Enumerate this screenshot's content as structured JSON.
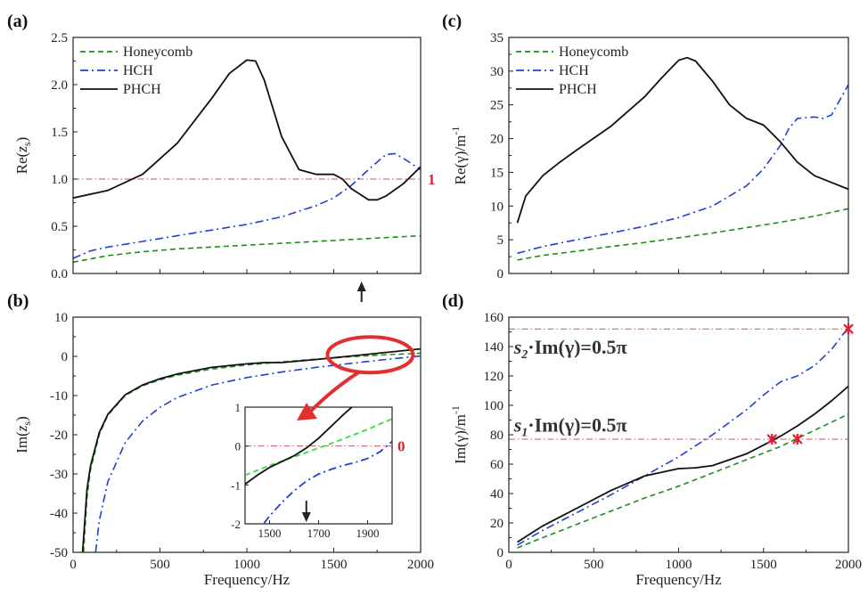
{
  "chart_data": [
    {
      "panel": "(a)",
      "type": "line",
      "xlabel": "",
      "ylabel": "Re(z_s)",
      "ylabel_main": "Re(",
      "ylabel_var": "z",
      "ylabel_sub": "s",
      "ylabel_end": ")",
      "xlim": [
        0,
        2000
      ],
      "ylim": [
        0,
        2.5
      ],
      "yticks": [
        "0.0",
        "0.5",
        "1.0",
        "1.5",
        "2.0",
        "2.5"
      ],
      "legend": [
        "Honeycomb",
        "HCH",
        "PHCH"
      ],
      "ref_value": 1,
      "ref_label": "1",
      "series": [
        {
          "name": "Honeycomb",
          "style": "dashed",
          "color": "#1a8f1a",
          "x": [
            0,
            200,
            400,
            600,
            800,
            1000,
            1200,
            1400,
            1600,
            1800,
            2000
          ],
          "y": [
            0.12,
            0.19,
            0.23,
            0.26,
            0.28,
            0.3,
            0.32,
            0.34,
            0.36,
            0.38,
            0.4
          ]
        },
        {
          "name": "HCH",
          "style": "dashdot",
          "color": "#1f3fd6",
          "x": [
            0,
            100,
            200,
            400,
            600,
            800,
            1000,
            1200,
            1400,
            1500,
            1600,
            1700,
            1800,
            1850,
            1900,
            2000
          ],
          "y": [
            0.16,
            0.24,
            0.28,
            0.34,
            0.4,
            0.46,
            0.52,
            0.6,
            0.72,
            0.8,
            0.93,
            1.1,
            1.26,
            1.27,
            1.22,
            1.1
          ]
        },
        {
          "name": "PHCH",
          "style": "solid",
          "color": "#111111",
          "x": [
            0,
            200,
            400,
            600,
            800,
            900,
            1000,
            1050,
            1100,
            1200,
            1300,
            1400,
            1500,
            1550,
            1600,
            1700,
            1750,
            1800,
            1900,
            2000
          ],
          "y": [
            0.8,
            0.88,
            1.05,
            1.38,
            1.86,
            2.12,
            2.26,
            2.25,
            2.05,
            1.45,
            1.1,
            1.05,
            1.05,
            1.0,
            0.9,
            0.78,
            0.78,
            0.82,
            0.95,
            1.13
          ]
        }
      ]
    },
    {
      "panel": "(b)",
      "type": "line",
      "xlabel": "Frequency/Hz",
      "ylabel": "Im(z_s)",
      "ylabel_main": "Im(",
      "ylabel_var": "z",
      "ylabel_sub": "s",
      "ylabel_end": ")",
      "xlim": [
        0,
        2000
      ],
      "ylim": [
        -50,
        10
      ],
      "xticks": [
        "0",
        "500",
        "1000",
        "1500",
        "2000"
      ],
      "yticks": [
        "-50",
        "-40",
        "-30",
        "-20",
        "-10",
        "0",
        "10"
      ],
      "series": [
        {
          "name": "Honeycomb",
          "style": "dashed",
          "color": "#1a8f1a",
          "x": [
            60,
            80,
            100,
            150,
            200,
            300,
            400,
            500,
            600,
            800,
            1000,
            1200,
            1400,
            1600,
            1800,
            2000
          ],
          "y": [
            -50,
            -36,
            -29,
            -20,
            -15,
            -10,
            -7.5,
            -6,
            -4.8,
            -3.2,
            -2.2,
            -1.4,
            -0.7,
            -0.1,
            0.4,
            0.8
          ]
        },
        {
          "name": "HCH",
          "style": "dashdot",
          "color": "#1f3fd6",
          "x": [
            130,
            150,
            200,
            300,
            400,
            500,
            600,
            800,
            1000,
            1200,
            1400,
            1600,
            1800,
            2000
          ],
          "y": [
            -50,
            -42,
            -32,
            -22,
            -16.5,
            -13,
            -10.5,
            -7.3,
            -5.4,
            -4,
            -2.8,
            -1.8,
            -0.8,
            0.1
          ]
        },
        {
          "name": "PHCH",
          "style": "solid",
          "color": "#111111",
          "x": [
            55,
            80,
            100,
            150,
            200,
            300,
            400,
            500,
            600,
            800,
            1000,
            1100,
            1200,
            1400,
            1600,
            1800,
            2000
          ],
          "y": [
            -50,
            -34,
            -28,
            -19.5,
            -14.8,
            -9.8,
            -7.3,
            -5.7,
            -4.5,
            -2.8,
            -1.9,
            -1.6,
            -1.6,
            -0.8,
            0.1,
            1.0,
            1.9
          ]
        }
      ],
      "inset": {
        "xlim": [
          1400,
          2000
        ],
        "ylim": [
          -2,
          1
        ],
        "xticks": [
          "1500",
          "1700",
          "1900"
        ],
        "yticks": [
          "-2",
          "-1",
          "0",
          "1"
        ],
        "ref_value": 0,
        "ref_label": "0",
        "arrow_x": 1650,
        "series": [
          {
            "name": "Honeycomb",
            "style": "dashed",
            "color": "#33dd33",
            "x": [
              1400,
              1500,
              1600,
              1700,
              1800,
              1900,
              2000
            ],
            "y": [
              -0.75,
              -0.5,
              -0.28,
              -0.05,
              0.18,
              0.43,
              0.7
            ]
          },
          {
            "name": "HCH",
            "style": "dashdot",
            "color": "#1f3fd6",
            "x": [
              1400,
              1450,
              1500,
              1550,
              1600,
              1650,
              1700,
              1750,
              1800,
              1850,
              1900,
              1950,
              2000
            ],
            "y": [
              -2.7,
              -2.2,
              -1.8,
              -1.45,
              -1.15,
              -0.9,
              -0.72,
              -0.6,
              -0.5,
              -0.42,
              -0.32,
              -0.15,
              0.12
            ]
          },
          {
            "name": "PHCH",
            "style": "solid",
            "color": "#111111",
            "x": [
              1400,
              1450,
              1500,
              1550,
              1600,
              1650,
              1700,
              1750,
              1800,
              1850
            ],
            "y": [
              -0.98,
              -0.75,
              -0.55,
              -0.4,
              -0.25,
              -0.05,
              0.2,
              0.5,
              0.8,
              1.08
            ]
          }
        ]
      }
    },
    {
      "panel": "(c)",
      "type": "line",
      "xlabel": "",
      "ylabel": "Re(γ)/m-1",
      "ylabel_main": "Re(γ)/m",
      "ylabel_sup": "-1",
      "xlim": [
        0,
        2000
      ],
      "ylim": [
        0,
        35
      ],
      "yticks": [
        "0",
        "5",
        "10",
        "15",
        "20",
        "25",
        "30",
        "35"
      ],
      "legend": [
        "Honeycomb",
        "HCH",
        "PHCH"
      ],
      "series": [
        {
          "name": "Honeycomb",
          "style": "dashed",
          "color": "#1a8f1a",
          "x": [
            50,
            200,
            400,
            600,
            800,
            1000,
            1200,
            1400,
            1600,
            1800,
            2000
          ],
          "y": [
            2.0,
            2.7,
            3.3,
            4.0,
            4.6,
            5.3,
            6.0,
            6.8,
            7.6,
            8.5,
            9.6
          ]
        },
        {
          "name": "HCH",
          "style": "dashdot",
          "color": "#1f3fd6",
          "x": [
            50,
            200,
            400,
            600,
            800,
            1000,
            1200,
            1400,
            1500,
            1600,
            1650,
            1700,
            1800,
            1850,
            1900,
            2000
          ],
          "y": [
            3.0,
            4.0,
            5.0,
            6.0,
            7.0,
            8.3,
            10.0,
            13.0,
            15.5,
            19.0,
            21.5,
            23.0,
            23.2,
            23.0,
            23.5,
            28.0
          ]
        },
        {
          "name": "PHCH",
          "style": "solid",
          "color": "#111111",
          "x": [
            50,
            100,
            200,
            300,
            400,
            600,
            800,
            900,
            1000,
            1050,
            1100,
            1200,
            1300,
            1400,
            1500,
            1600,
            1700,
            1800,
            1900,
            2000
          ],
          "y": [
            7.5,
            11.5,
            14.5,
            16.5,
            18.3,
            21.8,
            26.2,
            29.0,
            31.6,
            32.0,
            31.5,
            28.5,
            25.0,
            23.0,
            22.0,
            19.5,
            16.5,
            14.5,
            13.5,
            12.5
          ]
        }
      ]
    },
    {
      "panel": "(d)",
      "type": "line",
      "xlabel": "Frequency/Hz",
      "ylabel": "Im(γ)/m-1",
      "ylabel_main": "Im(γ)/m",
      "ylabel_sup": "-1",
      "xlim": [
        0,
        2000
      ],
      "ylim": [
        0,
        160
      ],
      "xticks": [
        "0",
        "500",
        "1000",
        "1500",
        "2000"
      ],
      "yticks": [
        "0",
        "20",
        "40",
        "60",
        "80",
        "100",
        "120",
        "140",
        "160"
      ],
      "ref_lines": [
        152,
        77
      ],
      "annotations": [
        {
          "text_pre": "s",
          "text_sub": "2",
          "text_post": "·Im(γ)=0.5π",
          "y": 140
        },
        {
          "text_pre": "s",
          "text_sub": "1",
          "text_post": "·Im(γ)=0.5π",
          "y": 87
        }
      ],
      "markers": [
        [
          1550,
          77
        ],
        [
          1700,
          77
        ],
        [
          2000,
          152
        ]
      ],
      "series": [
        {
          "name": "Honeycomb",
          "style": "dashed",
          "color": "#1a8f1a",
          "x": [
            50,
            200,
            400,
            600,
            800,
            1000,
            1200,
            1400,
            1600,
            1800,
            2000
          ],
          "y": [
            3,
            10,
            19,
            28,
            37,
            45,
            54,
            63,
            72,
            83,
            94
          ]
        },
        {
          "name": "HCH",
          "style": "dashdot",
          "color": "#1f3fd6",
          "x": [
            50,
            200,
            400,
            600,
            800,
            1000,
            1200,
            1400,
            1500,
            1600,
            1700,
            1800,
            1900,
            2000
          ],
          "y": [
            5,
            15,
            27,
            39,
            52,
            65,
            80,
            97,
            107,
            116,
            120,
            127,
            138,
            153
          ]
        },
        {
          "name": "PHCH",
          "style": "solid",
          "color": "#111111",
          "x": [
            50,
            200,
            400,
            600,
            800,
            1000,
            1100,
            1200,
            1400,
            1500,
            1600,
            1700,
            1800,
            1900,
            2000
          ],
          "y": [
            7,
            18,
            30,
            42,
            52,
            57,
            57.5,
            59,
            67,
            73,
            79,
            86,
            94,
            103,
            113
          ]
        }
      ]
    }
  ]
}
